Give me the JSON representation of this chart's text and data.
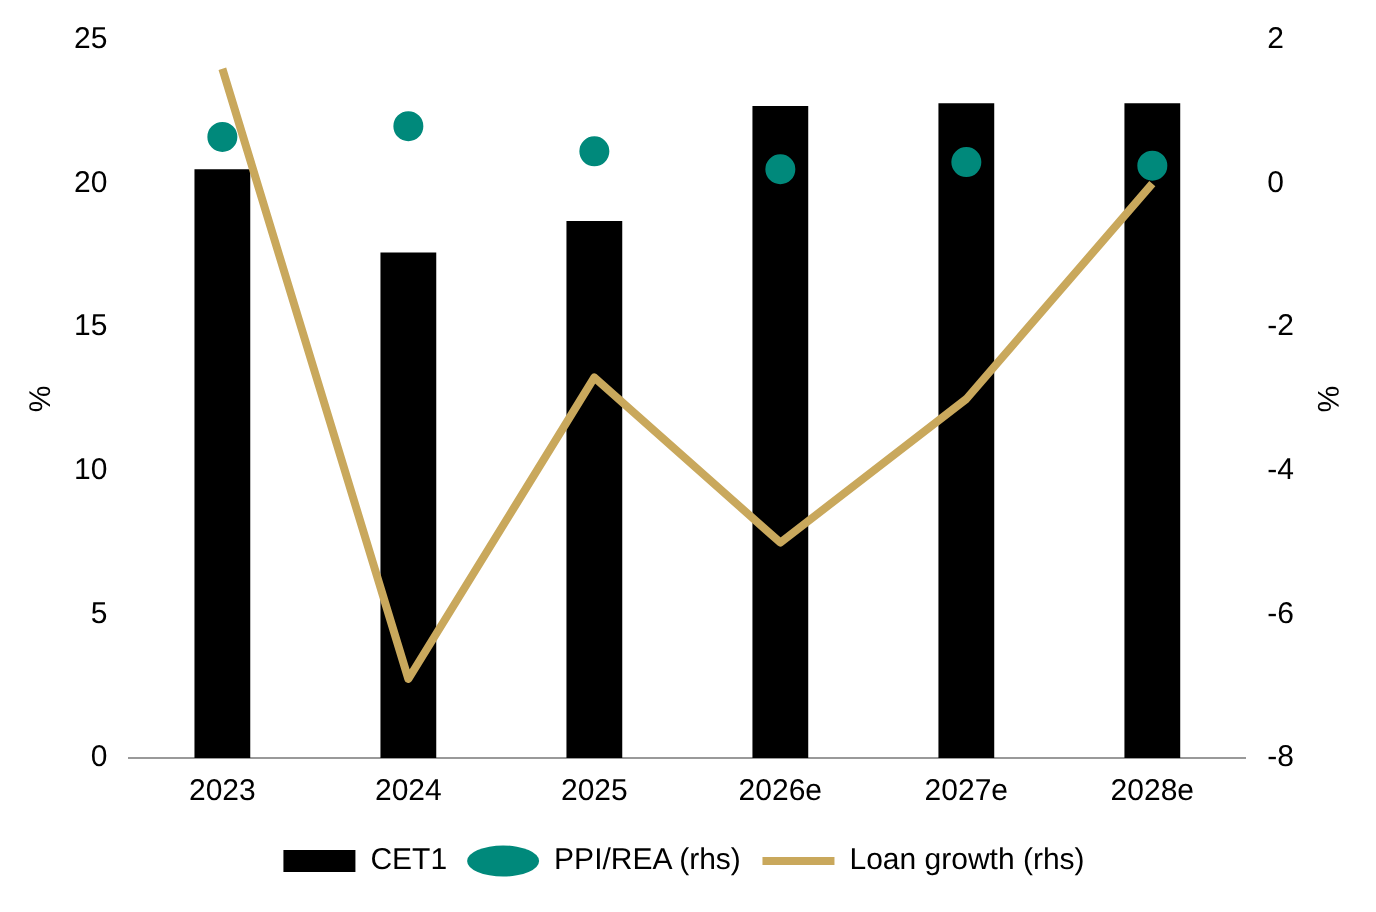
{
  "chart_data": {
    "type": "bar",
    "ylabel": "%",
    "y2label": "%",
    "categories": [
      "2023",
      "2024",
      "2025",
      "2026e",
      "2027e",
      "2028e"
    ],
    "series": [
      {
        "name": "CET1",
        "color": "#000000",
        "values": [
          20.5,
          17.6,
          18.7,
          22.7,
          22.8,
          22.8
        ]
      },
      {
        "name": "PPI/REA (rhs)",
        "type": "scatter",
        "axis": "y2",
        "color": "#00897b",
        "marker": "circle",
        "values": [
          0.65,
          0.8,
          0.45,
          0.2,
          0.3,
          0.25
        ]
      },
      {
        "name": "Loan growth (rhs)",
        "type": "line",
        "axis": "y2",
        "color": "#c9a85c",
        "values": [
          1.6,
          -6.9,
          -2.7,
          -5.0,
          -3.0,
          0.0
        ]
      }
    ],
    "ylim": [
      0,
      25
    ],
    "yticks": [
      0,
      5,
      10,
      15,
      20,
      25
    ],
    "y2lim": [
      -8,
      2
    ],
    "y2ticks": [
      -8,
      -6,
      -4,
      -2,
      0,
      2
    ],
    "grid": false,
    "legend": "bottom"
  }
}
